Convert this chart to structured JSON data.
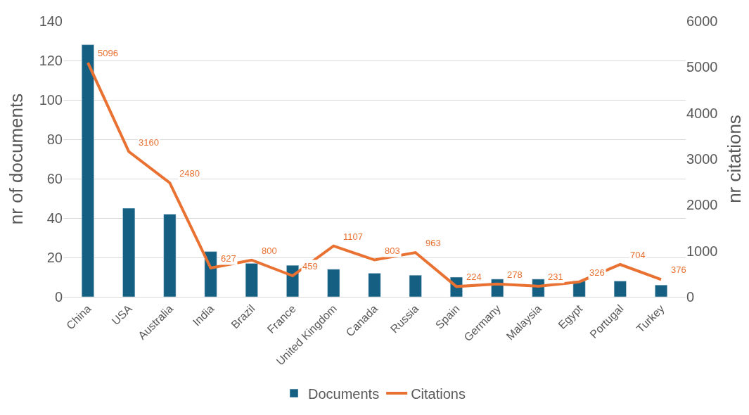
{
  "chart_data": {
    "type": "bar",
    "categories": [
      "China",
      "USA",
      "Australia",
      "India",
      "Brazil",
      "France",
      "United Kingdom",
      "Canada",
      "Russia",
      "Spain",
      "Germany",
      "Malaysia",
      "Egypt",
      "Portugal",
      "Turkey"
    ],
    "ylabel": "nr of documents",
    "y2label": "nr citations",
    "ylim": [
      0,
      140
    ],
    "yticks": [
      0,
      20,
      40,
      60,
      80,
      100,
      120,
      140
    ],
    "y2lim": [
      0,
      6000
    ],
    "y2ticks": [
      0,
      1000,
      2000,
      3000,
      4000,
      5000,
      6000
    ],
    "grid": "y",
    "legend": "bottom",
    "series": [
      {
        "name": "Documents",
        "color": "#156082",
        "values": [
          128,
          45,
          42,
          23,
          17,
          16,
          14,
          12,
          11,
          10,
          9,
          9,
          8,
          8,
          6
        ]
      },
      {
        "name": "Citations",
        "type": "line",
        "axis": "y2",
        "color": "#e97132",
        "data_labels": true,
        "values": [
          5096,
          3160,
          2480,
          627,
          800,
          459,
          1107,
          803,
          963,
          224,
          278,
          231,
          326,
          704,
          376
        ]
      }
    ]
  }
}
